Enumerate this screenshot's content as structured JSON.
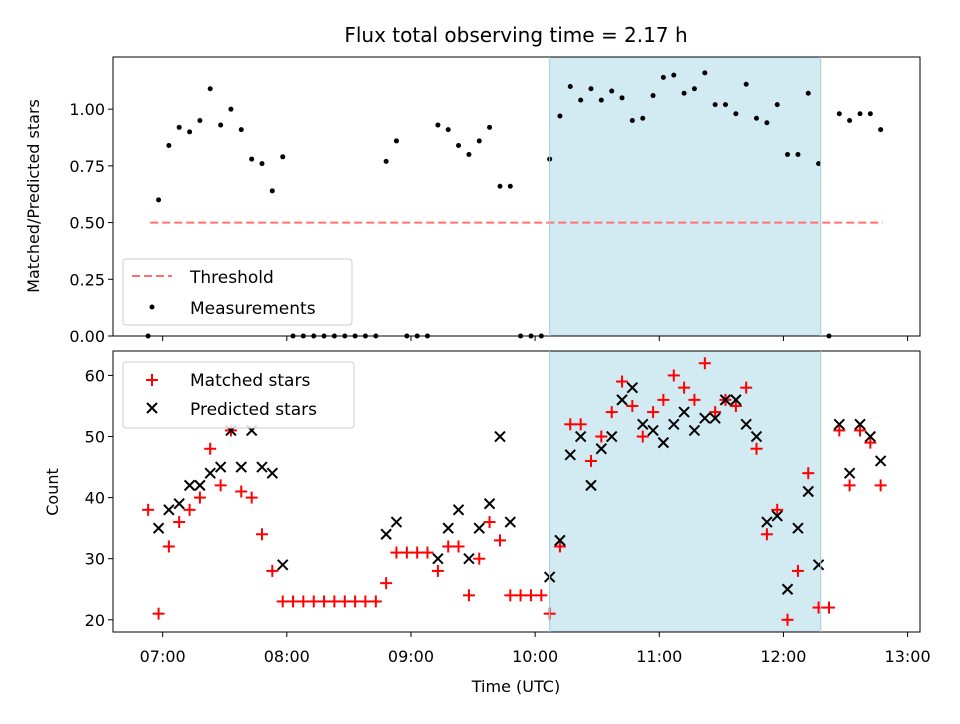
{
  "chart_data": {
    "type": "scatter",
    "title": "Flux total observing time = 2.17 h",
    "xlabel": "Time (UTC)",
    "x_unit": "hours UTC",
    "xlim": [
      6.6,
      13.1
    ],
    "x_ticks": [
      "07:00",
      "08:00",
      "09:00",
      "10:00",
      "11:00",
      "12:00",
      "13:00"
    ],
    "x_tick_values": [
      7,
      8,
      9,
      10,
      11,
      12,
      13
    ],
    "highlight_span": {
      "x": [
        10.1167,
        12.3
      ],
      "color": "#add8e6"
    },
    "panels": [
      {
        "ylabel": "Matched/Predicted stars",
        "ylim": [
          0,
          1.23
        ],
        "y_ticks": [
          0.0,
          0.25,
          0.5,
          0.75,
          1.0
        ],
        "y_tick_labels": [
          "0.00",
          "0.25",
          "0.50",
          "0.75",
          "1.00"
        ],
        "legend": {
          "placement": "lower-left",
          "entries": [
            "Threshold",
            "Measurements"
          ]
        },
        "threshold": {
          "name": "Threshold",
          "value": 0.5,
          "x": [
            6.9,
            12.8
          ],
          "color": "#ff7070",
          "style": "dashed"
        },
        "series": [
          {
            "name": "Measurements",
            "marker": "dot",
            "color": "#000000",
            "x": [
              6.883,
              6.967,
              7.05,
              7.133,
              7.217,
              7.3,
              7.383,
              7.467,
              7.55,
              7.633,
              7.717,
              7.8,
              7.883,
              7.967,
              8.05,
              8.133,
              8.217,
              8.3,
              8.383,
              8.467,
              8.55,
              8.633,
              8.717,
              8.8,
              8.883,
              8.967,
              9.05,
              9.133,
              9.217,
              9.3,
              9.383,
              9.467,
              9.55,
              9.633,
              9.717,
              9.8,
              9.883,
              9.967,
              10.05,
              10.117,
              10.2,
              10.283,
              10.367,
              10.45,
              10.533,
              10.617,
              10.7,
              10.783,
              10.867,
              10.95,
              11.033,
              11.117,
              11.2,
              11.283,
              11.367,
              11.45,
              11.533,
              11.617,
              11.7,
              11.783,
              11.867,
              11.95,
              12.033,
              12.117,
              12.2,
              12.283,
              12.367,
              12.45,
              12.533,
              12.617,
              12.7,
              12.783
            ],
            "y": [
              0.0,
              0.6,
              0.84,
              0.92,
              0.9,
              0.95,
              1.09,
              0.93,
              1.0,
              0.91,
              0.78,
              0.76,
              0.64,
              0.79,
              0.0,
              0.0,
              0.0,
              0.0,
              0.0,
              0.0,
              0.0,
              0.0,
              0.0,
              0.77,
              0.86,
              0.0,
              0.0,
              0.0,
              0.93,
              0.91,
              0.84,
              0.8,
              0.86,
              0.92,
              0.66,
              0.66,
              0.0,
              0.0,
              0.0,
              0.78,
              0.97,
              1.1,
              1.04,
              1.09,
              1.04,
              1.08,
              1.05,
              0.95,
              0.96,
              1.06,
              1.14,
              1.15,
              1.07,
              1.09,
              1.16,
              1.02,
              1.02,
              0.98,
              1.11,
              0.96,
              0.94,
              1.02,
              0.8,
              0.8,
              1.07,
              0.76,
              0.0,
              0.98,
              0.95,
              0.98,
              0.98,
              0.91
            ]
          }
        ]
      },
      {
        "ylabel": "Count",
        "ylim": [
          18,
          64
        ],
        "y_ticks": [
          20,
          30,
          40,
          50,
          60
        ],
        "y_tick_labels": [
          "20",
          "30",
          "40",
          "50",
          "60"
        ],
        "legend": {
          "placement": "top-left",
          "entries": [
            "Matched stars",
            "Predicted stars"
          ]
        },
        "series": [
          {
            "name": "Matched stars",
            "marker": "plus",
            "color": "#ff0000",
            "x": [
              6.883,
              6.967,
              7.05,
              7.133,
              7.217,
              7.3,
              7.383,
              7.467,
              7.55,
              7.633,
              7.717,
              7.8,
              7.883,
              7.967,
              8.05,
              8.133,
              8.217,
              8.3,
              8.383,
              8.467,
              8.55,
              8.633,
              8.717,
              8.8,
              8.883,
              8.967,
              9.05,
              9.133,
              9.217,
              9.3,
              9.383,
              9.467,
              9.55,
              9.633,
              9.717,
              9.8,
              9.883,
              9.967,
              10.05,
              10.117,
              10.2,
              10.283,
              10.367,
              10.45,
              10.533,
              10.617,
              10.7,
              10.783,
              10.867,
              10.95,
              11.033,
              11.117,
              11.2,
              11.283,
              11.367,
              11.45,
              11.533,
              11.617,
              11.7,
              11.783,
              11.867,
              11.95,
              12.033,
              12.117,
              12.2,
              12.283,
              12.367,
              12.45,
              12.533,
              12.617,
              12.7,
              12.783
            ],
            "y": [
              38,
              21,
              32,
              36,
              38,
              40,
              48,
              42,
              51,
              41,
              40,
              34,
              28,
              23,
              23,
              23,
              23,
              23,
              23,
              23,
              23,
              23,
              23,
              26,
              31,
              31,
              31,
              31,
              28,
              32,
              32,
              24,
              30,
              36,
              33,
              24,
              24,
              24,
              24,
              21,
              32,
              52,
              52,
              46,
              50,
              54,
              59,
              55,
              50,
              54,
              56,
              60,
              58,
              56,
              62,
              54,
              56,
              55,
              58,
              48,
              34,
              38,
              20,
              28,
              44,
              22,
              22,
              51,
              42,
              51,
              49,
              42
            ]
          },
          {
            "name": "Predicted stars",
            "marker": "x",
            "color": "#000000",
            "x": [
              6.967,
              7.05,
              7.133,
              7.217,
              7.3,
              7.383,
              7.467,
              7.55,
              7.633,
              7.717,
              7.8,
              7.883,
              7.967,
              8.8,
              8.883,
              9.217,
              9.3,
              9.383,
              9.467,
              9.55,
              9.633,
              9.717,
              9.8,
              10.117,
              10.2,
              10.283,
              10.367,
              10.45,
              10.533,
              10.617,
              10.7,
              10.783,
              10.867,
              10.95,
              11.033,
              11.117,
              11.2,
              11.283,
              11.367,
              11.45,
              11.533,
              11.617,
              11.7,
              11.783,
              11.867,
              11.95,
              12.033,
              12.117,
              12.2,
              12.283,
              12.45,
              12.533,
              12.617,
              12.7,
              12.783
            ],
            "y": [
              35,
              38,
              39,
              42,
              42,
              44,
              45,
              51,
              45,
              51,
              45,
              44,
              29,
              34,
              36,
              30,
              35,
              38,
              30,
              35,
              39,
              50,
              36,
              27,
              33,
              47,
              50,
              42,
              48,
              50,
              56,
              58,
              52,
              51,
              49,
              52,
              54,
              51,
              53,
              53,
              56,
              56,
              52,
              50,
              36,
              37,
              25,
              35,
              41,
              29,
              52,
              44,
              52,
              50,
              46
            ]
          }
        ]
      }
    ]
  }
}
